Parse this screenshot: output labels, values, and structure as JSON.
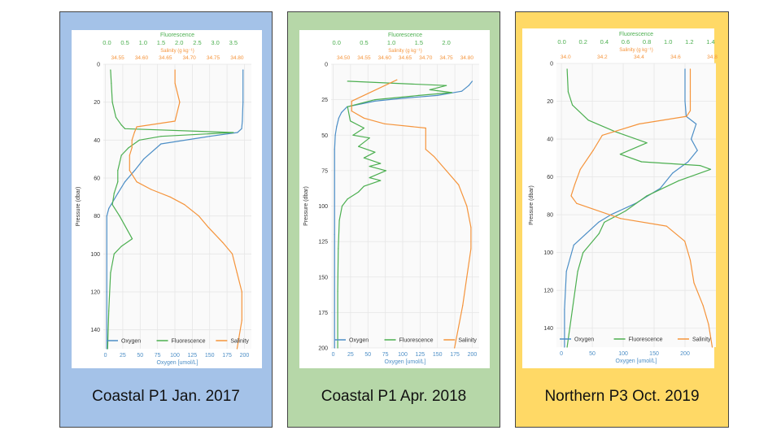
{
  "colors": {
    "oxygen": "#4c8ec6",
    "fluorescence": "#4caf50",
    "salinity": "#f5943b",
    "grid": "#e6e6e6",
    "axis": "#333333"
  },
  "chart_data": [
    {
      "type": "line",
      "caption": "Coastal P1 Jan. 2017",
      "ylabel": "Pressure (dbar)",
      "ylim": [
        150,
        0
      ],
      "yticks": [
        0,
        20,
        40,
        60,
        80,
        100,
        120,
        140
      ],
      "ylim_rev": true,
      "axes": {
        "oxygen": {
          "label": "Oxygen [umol/L]",
          "lim": [
            -3,
            210
          ],
          "ticks": [
            0,
            25,
            50,
            75,
            100,
            125,
            150,
            175,
            200
          ]
        },
        "fluorescence": {
          "label": "Fluorescence",
          "lim": [
            -0.1,
            4.0
          ],
          "ticks": [
            0.0,
            0.5,
            1.0,
            1.5,
            2.0,
            2.5,
            3.0,
            3.5
          ],
          "decimals": 1
        },
        "salinity": {
          "label": "Salinity (g kg⁻¹)",
          "lim": [
            34.52,
            34.83
          ],
          "ticks": [
            34.55,
            34.6,
            34.65,
            34.7,
            34.75,
            34.8
          ],
          "decimals": 2
        }
      },
      "legend": [
        "Oxygen",
        "Fluorescence",
        "Salinity"
      ],
      "series": [
        {
          "name": "Oxygen",
          "axis": "oxygen",
          "x": [
            198,
            198,
            197,
            196,
            190,
            150,
            80,
            55,
            42,
            28,
            18,
            5,
            2,
            2,
            2
          ],
          "y": [
            3,
            20,
            30,
            34,
            36,
            38,
            42,
            50,
            56,
            62,
            68,
            76,
            80,
            120,
            150
          ]
        },
        {
          "name": "Fluorescence",
          "axis": "fluorescence",
          "x": [
            0.1,
            0.12,
            0.15,
            0.25,
            0.4,
            0.5,
            3.5,
            1.5,
            0.9,
            0.6,
            0.4,
            0.3,
            0.3,
            0.2,
            0.15,
            0.35,
            0.7,
            0.4,
            0.2,
            0.1,
            0.05,
            0.02
          ],
          "y": [
            3,
            10,
            20,
            28,
            32,
            34,
            36,
            38,
            40,
            44,
            48,
            56,
            62,
            68,
            74,
            80,
            92,
            96,
            100,
            110,
            130,
            150
          ]
        },
        {
          "name": "Salinity",
          "axis": "salinity",
          "x": [
            34.67,
            34.67,
            34.68,
            34.67,
            34.59,
            34.585,
            34.58,
            34.58,
            34.575,
            34.575,
            34.59,
            34.62,
            34.66,
            34.69,
            34.72,
            34.74,
            34.77,
            34.79,
            34.8,
            34.81,
            34.81,
            34.8
          ],
          "y": [
            3,
            10,
            20,
            30,
            33,
            36,
            40,
            44,
            48,
            56,
            62,
            66,
            70,
            74,
            80,
            86,
            94,
            100,
            110,
            120,
            135,
            150
          ]
        }
      ]
    },
    {
      "type": "line",
      "caption": "Coastal P1 Apr. 2018",
      "ylabel": "Pressure (dbar)",
      "ylim": [
        200,
        0
      ],
      "yticks": [
        0,
        25,
        50,
        75,
        100,
        125,
        150,
        175,
        200
      ],
      "ylim_rev": true,
      "axes": {
        "oxygen": {
          "label": "Oxygen [umol/L]",
          "lim": [
            -3,
            210
          ],
          "ticks": [
            0,
            25,
            50,
            75,
            100,
            125,
            150,
            175,
            200
          ]
        },
        "fluorescence": {
          "label": "Fluorescence",
          "lim": [
            -0.1,
            2.6
          ],
          "ticks": [
            0.0,
            0.5,
            1.0,
            1.5,
            2.0
          ],
          "decimals": 1
        },
        "salinity": {
          "label": "Salinity (g kg⁻¹)",
          "lim": [
            34.47,
            34.83
          ],
          "ticks": [
            34.5,
            34.55,
            34.6,
            34.65,
            34.7,
            34.75,
            34.8
          ],
          "decimals": 2
        }
      },
      "legend": [
        "Oxygen",
        "Fluorescence",
        "Salinity"
      ],
      "series": [
        {
          "name": "Oxygen",
          "axis": "oxygen",
          "x": [
            200,
            195,
            185,
            150,
            100,
            60,
            40,
            20,
            12,
            8,
            5,
            3,
            2,
            2,
            2
          ],
          "y": [
            12,
            15,
            19,
            22,
            24,
            26,
            28,
            30,
            34,
            38,
            44,
            50,
            60,
            120,
            200
          ]
        },
        {
          "name": "Fluorescence",
          "axis": "fluorescence",
          "x": [
            0.2,
            2.0,
            1.7,
            2.1,
            1.5,
            0.7,
            0.2,
            0.25,
            0.5,
            0.3,
            0.6,
            0.4,
            0.7,
            0.5,
            0.8,
            0.6,
            0.9,
            0.6,
            0.8,
            0.5,
            0.4,
            0.2,
            0.1,
            0.05,
            0.03,
            0.02,
            0.02
          ],
          "y": [
            12,
            15,
            18,
            20,
            22,
            25,
            30,
            40,
            45,
            50,
            52,
            58,
            62,
            66,
            70,
            72,
            75,
            80,
            82,
            86,
            90,
            95,
            100,
            110,
            130,
            160,
            200
          ]
        },
        {
          "name": "Salinity",
          "axis": "salinity",
          "x": [
            34.63,
            34.52,
            34.52,
            34.55,
            34.6,
            34.7,
            34.7,
            34.72,
            34.75,
            34.78,
            34.8,
            34.81,
            34.81,
            34.8,
            34.79,
            34.77
          ],
          "y": [
            11,
            26,
            33,
            38,
            42,
            45,
            60,
            65,
            75,
            85,
            100,
            115,
            130,
            150,
            170,
            200
          ]
        }
      ]
    },
    {
      "type": "line",
      "caption": "Northern P3 Oct. 2019",
      "ylabel": "Pressure (dbar)",
      "ylim": [
        150,
        0
      ],
      "yticks": [
        0,
        20,
        40,
        60,
        80,
        100,
        120,
        140
      ],
      "ylim_rev": true,
      "axes": {
        "oxygen": {
          "label": "Oxygen [umol/L]",
          "lim": [
            -8,
            250
          ],
          "ticks": [
            0,
            50,
            100,
            150,
            200
          ]
        },
        "fluorescence": {
          "label": "Fluorescence",
          "lim": [
            -0.05,
            1.45
          ],
          "ticks": [
            0.0,
            0.2,
            0.4,
            0.6,
            0.8,
            1.0,
            1.2,
            1.4
          ],
          "decimals": 1
        },
        "salinity": {
          "label": "Salinity (g kg⁻¹)",
          "lim": [
            33.95,
            34.82
          ],
          "ticks": [
            34.0,
            34.2,
            34.4,
            34.6,
            34.8
          ],
          "decimals": 1
        }
      },
      "legend": [
        "Oxygen",
        "Fluorescence",
        "Salinity"
      ],
      "series": [
        {
          "name": "Oxygen",
          "axis": "oxygen",
          "x": [
            200,
            200,
            202,
            218,
            210,
            220,
            205,
            180,
            160,
            120,
            80,
            60,
            40,
            20,
            8,
            5,
            5
          ],
          "y": [
            3,
            20,
            28,
            32,
            40,
            46,
            52,
            58,
            66,
            74,
            80,
            84,
            90,
            96,
            110,
            130,
            150
          ]
        },
        {
          "name": "Fluorescence",
          "axis": "fluorescence",
          "x": [
            0.05,
            0.06,
            0.1,
            0.25,
            0.5,
            0.8,
            0.55,
            0.75,
            1.3,
            1.4,
            1.1,
            0.8,
            0.6,
            0.4,
            0.35,
            0.2,
            0.15,
            0.1,
            0.05
          ],
          "y": [
            3,
            15,
            22,
            30,
            36,
            42,
            48,
            52,
            54,
            56,
            62,
            70,
            78,
            84,
            90,
            100,
            110,
            130,
            150
          ]
        },
        {
          "name": "Salinity",
          "axis": "salinity",
          "x": [
            34.68,
            34.68,
            34.68,
            34.66,
            34.4,
            34.2,
            34.15,
            34.08,
            34.05,
            34.03,
            34.06,
            34.3,
            34.55,
            34.65,
            34.68,
            34.7,
            34.75,
            34.78,
            34.8
          ],
          "y": [
            3,
            15,
            25,
            28,
            32,
            38,
            46,
            56,
            64,
            70,
            74,
            82,
            86,
            94,
            104,
            116,
            128,
            138,
            150
          ]
        }
      ]
    }
  ]
}
